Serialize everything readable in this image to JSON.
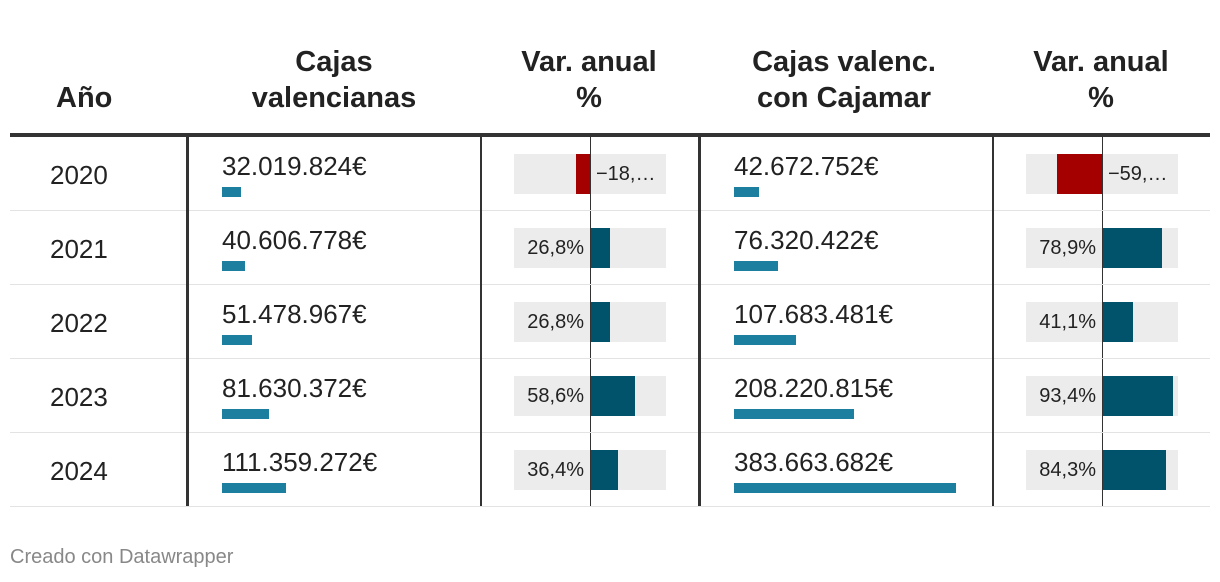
{
  "headers": {
    "year": "Año",
    "cajas": [
      "Cajas",
      "valencianas"
    ],
    "var1": [
      "Var. anual",
      "%"
    ],
    "cajamar": [
      "Cajas valenc.",
      "con Cajamar"
    ],
    "var2": [
      "Var. anual",
      "%"
    ]
  },
  "rows": [
    {
      "year": "2020",
      "cajas": "32.019.824€",
      "var1": "−18,…",
      "cajamar": "42.672.752€",
      "var2": "−59,…"
    },
    {
      "year": "2021",
      "cajas": "40.606.778€",
      "var1": "26,8%",
      "cajamar": "76.320.422€",
      "var2": "78,9%"
    },
    {
      "year": "2022",
      "cajas": "51.478.967€",
      "var1": "26,8%",
      "cajamar": "107.683.481€",
      "var2": "41,1%"
    },
    {
      "year": "2023",
      "cajas": "81.630.372€",
      "var1": "58,6%",
      "cajamar": "208.220.815€",
      "var2": "93,4%"
    },
    {
      "year": "2024",
      "cajas": "111.359.272€",
      "var1": "36,4%",
      "cajamar": "383.663.682€",
      "var2": "84,3%"
    }
  ],
  "chart_data": {
    "type": "table",
    "columns": [
      "Año",
      "Cajas valencianas",
      "Var. anual %",
      "Cajas valenc. con Cajamar",
      "Var. anual %"
    ],
    "years": [
      "2020",
      "2021",
      "2022",
      "2023",
      "2024"
    ],
    "cajas_valencianas": [
      32019824,
      40606778,
      51478967,
      81630372,
      111359272
    ],
    "var_anual_cajas": [
      -18.4,
      26.8,
      26.8,
      58.6,
      36.4
    ],
    "cajas_con_cajamar": [
      42672752,
      76320422,
      107683481,
      208220815,
      383663682
    ],
    "var_anual_cajamar": [
      -59.4,
      78.9,
      41.1,
      93.4,
      84.3
    ],
    "bar_scale_money_max": 383663682,
    "var_range": [
      -100,
      100
    ],
    "colors": {
      "money_bar": "#1c7f9f",
      "positive_bar": "#01526b",
      "negative_bar": "#a50000",
      "track": "#ececec"
    }
  },
  "footer": "Creado con Datawrapper"
}
